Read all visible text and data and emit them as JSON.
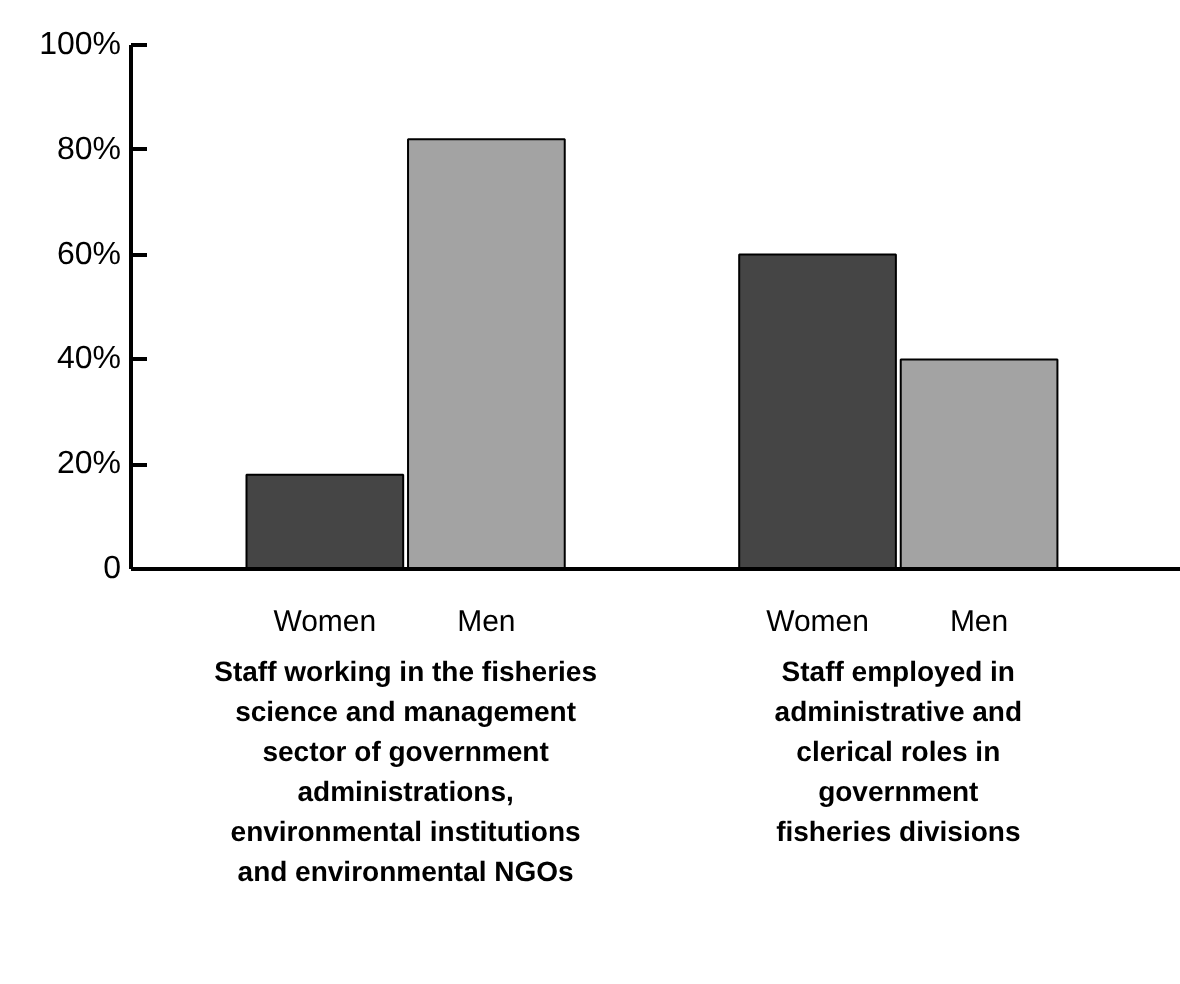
{
  "chart_data": {
    "type": "bar",
    "categories": [
      "Women",
      "Men",
      "Women",
      "Men"
    ],
    "values": [
      18,
      82,
      60,
      40
    ],
    "colors": [
      "#454545",
      "#a3a3a3",
      "#454545",
      "#a3a3a3"
    ],
    "ylim": [
      0,
      100
    ],
    "yticks": [
      {
        "value": 0,
        "label": "0"
      },
      {
        "value": 20,
        "label": "20%"
      },
      {
        "value": 40,
        "label": "40%"
      },
      {
        "value": 60,
        "label": "60%"
      },
      {
        "value": 80,
        "label": "80%"
      },
      {
        "value": 100,
        "label": "100%"
      }
    ],
    "grid": false,
    "annotations": [
      "Staff working in the fisheries\nscience and management\nsector of government\nadministrations,\nenvironmental institutions\nand environmental NGOs",
      "Staff employed in\nadministrative and\nclerical roles in\ngovernment\nfisheries divisions"
    ]
  }
}
